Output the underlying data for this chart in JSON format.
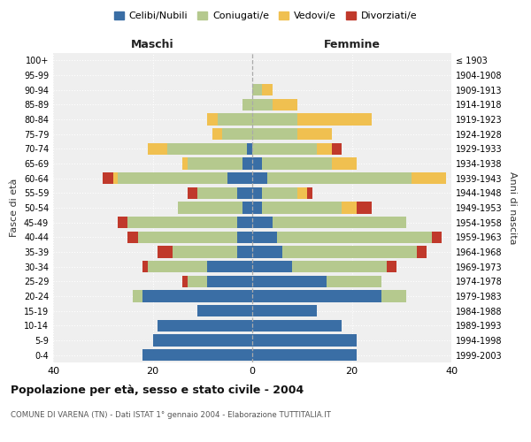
{
  "age_groups": [
    "0-4",
    "5-9",
    "10-14",
    "15-19",
    "20-24",
    "25-29",
    "30-34",
    "35-39",
    "40-44",
    "45-49",
    "50-54",
    "55-59",
    "60-64",
    "65-69",
    "70-74",
    "75-79",
    "80-84",
    "85-89",
    "90-94",
    "95-99",
    "100+"
  ],
  "birth_years": [
    "1999-2003",
    "1994-1998",
    "1989-1993",
    "1984-1988",
    "1979-1983",
    "1974-1978",
    "1969-1973",
    "1964-1968",
    "1959-1963",
    "1954-1958",
    "1949-1953",
    "1944-1948",
    "1939-1943",
    "1934-1938",
    "1929-1933",
    "1924-1928",
    "1919-1923",
    "1914-1918",
    "1909-1913",
    "1904-1908",
    "≤ 1903"
  ],
  "male": {
    "celibi": [
      22,
      20,
      19,
      11,
      22,
      9,
      9,
      3,
      3,
      3,
      2,
      3,
      5,
      2,
      1,
      0,
      0,
      0,
      0,
      0,
      0
    ],
    "coniugati": [
      0,
      0,
      0,
      0,
      2,
      4,
      12,
      13,
      20,
      22,
      13,
      8,
      22,
      11,
      16,
      6,
      7,
      2,
      0,
      0,
      0
    ],
    "vedovi": [
      0,
      0,
      0,
      0,
      0,
      0,
      0,
      0,
      0,
      0,
      0,
      0,
      1,
      1,
      4,
      2,
      2,
      0,
      0,
      0,
      0
    ],
    "divorziati": [
      0,
      0,
      0,
      0,
      0,
      1,
      1,
      3,
      2,
      2,
      0,
      2,
      2,
      0,
      0,
      0,
      0,
      0,
      0,
      0,
      0
    ]
  },
  "female": {
    "nubili": [
      21,
      21,
      18,
      13,
      26,
      15,
      8,
      6,
      5,
      4,
      2,
      2,
      3,
      2,
      0,
      0,
      0,
      0,
      0,
      0,
      0
    ],
    "coniugate": [
      0,
      0,
      0,
      0,
      5,
      11,
      19,
      27,
      31,
      27,
      16,
      7,
      29,
      14,
      13,
      9,
      9,
      4,
      2,
      0,
      0
    ],
    "vedove": [
      0,
      0,
      0,
      0,
      0,
      0,
      0,
      0,
      0,
      0,
      3,
      2,
      7,
      5,
      3,
      7,
      15,
      5,
      2,
      0,
      0
    ],
    "divorziate": [
      0,
      0,
      0,
      0,
      0,
      0,
      2,
      2,
      2,
      0,
      3,
      1,
      0,
      0,
      2,
      0,
      0,
      0,
      0,
      0,
      0
    ]
  },
  "colors": {
    "celibi": "#3a6ea5",
    "coniugati": "#b5c98e",
    "vedovi": "#f0c050",
    "divorziati": "#c0392b"
  },
  "xlim": 40,
  "title": "Popolazione per età, sesso e stato civile - 2004",
  "subtitle": "COMUNE DI VARENA (TN) - Dati ISTAT 1° gennaio 2004 - Elaborazione TUTTITALIA.IT",
  "xlabel_left": "Maschi",
  "xlabel_right": "Femmine",
  "ylabel_left": "Fasce di età",
  "ylabel_right": "Anni di nascita",
  "legend_labels": [
    "Celibi/Nubili",
    "Coniugati/e",
    "Vedovi/e",
    "Divorziati/e"
  ],
  "bg_color": "#efefef"
}
